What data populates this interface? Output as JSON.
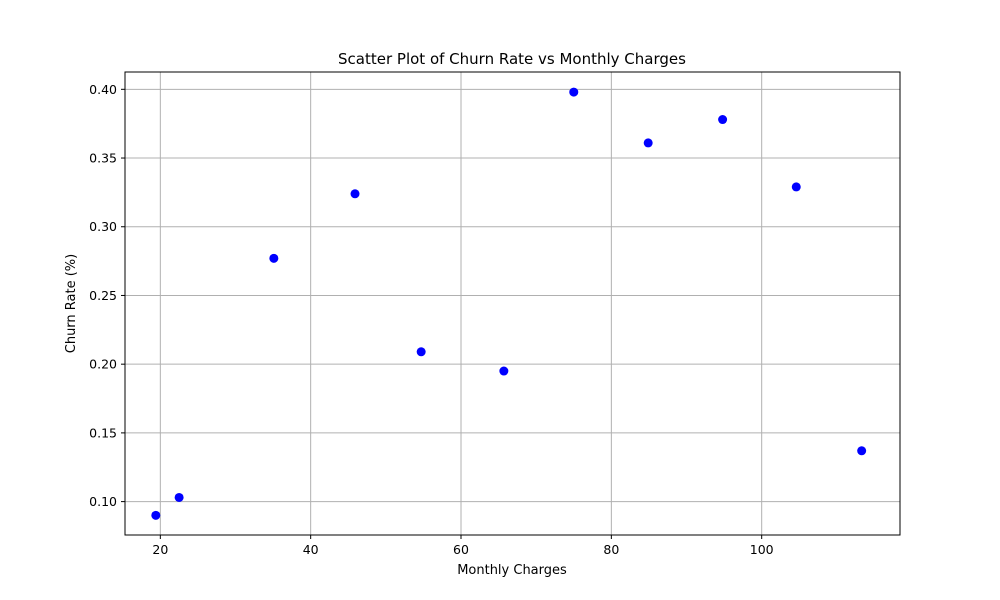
{
  "chart_data": {
    "type": "scatter",
    "title": "Scatter Plot of Churn Rate vs Monthly Charges",
    "xlabel": "Monthly Charges",
    "ylabel": "Churn Rate (%)",
    "xlim": [
      15.3,
      118.4
    ],
    "ylim": [
      0.0757,
      0.4126
    ],
    "xticks": [
      20,
      40,
      60,
      80,
      100
    ],
    "xtick_labels": [
      "20",
      "40",
      "60",
      "80",
      "100"
    ],
    "yticks": [
      0.1,
      0.15,
      0.2,
      0.25,
      0.3,
      0.35,
      0.4
    ],
    "ytick_labels": [
      "0.10",
      "0.15",
      "0.20",
      "0.25",
      "0.30",
      "0.35",
      "0.40"
    ],
    "grid": true,
    "marker_color": "#0000ff",
    "series": [
      {
        "x": [
          19.4,
          22.5,
          35.1,
          45.9,
          54.7,
          65.7,
          75.0,
          84.9,
          94.8,
          104.6,
          113.3
        ],
        "y": [
          0.09,
          0.103,
          0.277,
          0.324,
          0.209,
          0.195,
          0.398,
          0.361,
          0.378,
          0.329,
          0.137
        ]
      }
    ]
  }
}
